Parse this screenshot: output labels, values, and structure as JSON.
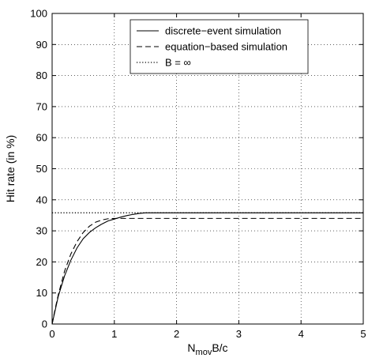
{
  "chart_data": {
    "type": "line",
    "title": "",
    "xlabel_main": "N",
    "xlabel_sub": "mov",
    "xlabel_rest": "B/c",
    "ylabel": "Hit rate (in %)",
    "xlim": [
      0,
      5
    ],
    "ylim": [
      0,
      100
    ],
    "x_ticks": [
      0,
      1,
      2,
      3,
      4,
      5
    ],
    "y_ticks": [
      0,
      10,
      20,
      30,
      40,
      50,
      60,
      70,
      80,
      90,
      100
    ],
    "grid": true,
    "legend_position": "top-right",
    "series": [
      {
        "name": "discrete−event simulation",
        "style": "solid",
        "x": [
          0,
          0.05,
          0.1,
          0.2,
          0.3,
          0.4,
          0.5,
          0.6,
          0.7,
          0.8,
          0.9,
          1.0,
          1.1,
          1.2,
          1.3,
          1.4,
          1.5,
          2.0,
          3.0,
          4.0,
          5.0
        ],
        "y": [
          0,
          4.5,
          9,
          15.5,
          20.5,
          24.5,
          27.5,
          29.5,
          31,
          32.2,
          33.2,
          33.8,
          34.4,
          34.9,
          35.3,
          35.6,
          35.8,
          35.8,
          35.8,
          35.8,
          35.8
        ]
      },
      {
        "name": "equation−based simulation",
        "style": "dashed",
        "x": [
          0,
          0.05,
          0.1,
          0.2,
          0.3,
          0.4,
          0.5,
          0.6,
          0.7,
          0.8,
          0.9,
          1.0,
          1.2,
          1.5,
          2.0,
          3.0,
          4.0,
          5.0
        ],
        "y": [
          0,
          5,
          9.5,
          17,
          22.5,
          26.5,
          29.5,
          31.5,
          32.8,
          33.5,
          33.9,
          34.0,
          34.0,
          34.0,
          34.0,
          34.0,
          34.0,
          34.0
        ]
      },
      {
        "name": "B = ∞",
        "style": "dotted",
        "x": [
          0,
          5
        ],
        "y": [
          35.8,
          35.8
        ]
      }
    ]
  }
}
